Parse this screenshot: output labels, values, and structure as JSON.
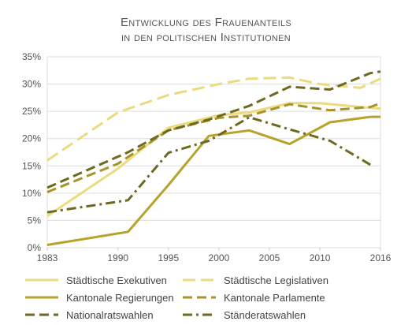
{
  "title_line1": "Entwicklung des Frauenanteils",
  "title_line2": "in den politischen Institutionen",
  "chart_data": {
    "type": "line",
    "title": "Entwicklung des Frauenanteils in den politischen Institutionen",
    "xlabel": "",
    "ylabel": "",
    "xlim": [
      1983,
      2016
    ],
    "ylim": [
      0,
      35
    ],
    "x_ticks": [
      1983,
      1990,
      1995,
      2000,
      2005,
      2010,
      2016
    ],
    "x_tick_labels": [
      "1983",
      "1990",
      "1995",
      "2000",
      "2005",
      "2010",
      "2016"
    ],
    "y_ticks": [
      0,
      5,
      10,
      15,
      20,
      25,
      30,
      35
    ],
    "y_tick_labels": [
      "0%",
      "5%",
      "10%",
      "15%",
      "20%",
      "25%",
      "30%",
      "35%"
    ],
    "grid": true,
    "legend_position": "bottom",
    "series": [
      {
        "name": "Städtische Exekutiven",
        "color": "#ecdb7e",
        "dash": "solid",
        "x": [
          1983,
          1990,
          1995,
          2000,
          2003,
          2007,
          2010,
          2014,
          2016
        ],
        "y": [
          5.8,
          14.5,
          22.0,
          24.3,
          24.8,
          26.5,
          26.5,
          25.8,
          25.5
        ]
      },
      {
        "name": "Städtische Legislativen",
        "color": "#ecdb7e",
        "dash": "long",
        "x": [
          1983,
          1990,
          1995,
          2000,
          2003,
          2007,
          2010,
          2014,
          2016
        ],
        "y": [
          16.0,
          24.8,
          28.0,
          30.0,
          31.0,
          31.2,
          30.0,
          29.3,
          31.0
        ]
      },
      {
        "name": "Kantonale Regierungen",
        "color": "#b7a22b",
        "dash": "solid",
        "x": [
          1983,
          1991,
          1995,
          1999,
          2003,
          2007,
          2011,
          2015,
          2016
        ],
        "y": [
          0.5,
          2.9,
          11.5,
          20.5,
          21.5,
          19.0,
          23.0,
          24.0,
          24.0
        ]
      },
      {
        "name": "Kantonale Parlamente",
        "color": "#a8932a",
        "dash": "medium",
        "x": [
          1983,
          1990,
          1995,
          2000,
          2003,
          2007,
          2011,
          2015,
          2016
        ],
        "y": [
          10.2,
          15.4,
          21.5,
          23.8,
          24.2,
          26.3,
          25.2,
          25.8,
          26.5
        ]
      },
      {
        "name": "Nationalratswahlen",
        "color": "#6e6820",
        "dash": "medium",
        "x": [
          1983,
          1991,
          1995,
          1999,
          2003,
          2007,
          2011,
          2015,
          2016
        ],
        "y": [
          11.0,
          17.5,
          21.5,
          23.5,
          26.0,
          29.5,
          29.0,
          32.0,
          32.3
        ]
      },
      {
        "name": "Ständeratswahlen",
        "color": "#6e6820",
        "dash": "dashdot",
        "x": [
          1983,
          1991,
          1995,
          1999,
          2003,
          2007,
          2011,
          2015
        ],
        "y": [
          6.5,
          8.7,
          17.4,
          19.6,
          23.9,
          21.7,
          19.6,
          15.2
        ]
      }
    ]
  }
}
